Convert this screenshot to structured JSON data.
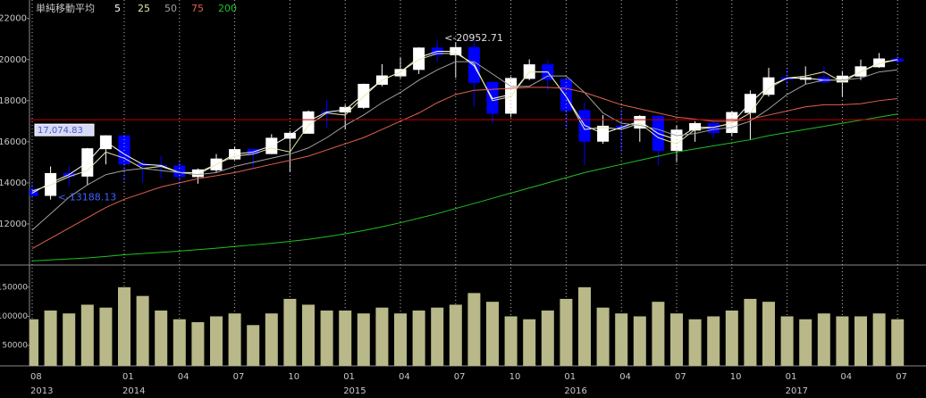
{
  "chart_data": [
    {
      "type": "candlestick",
      "legend_title": "単純移動平均",
      "categories": [
        "08",
        null,
        null,
        null,
        null,
        "01",
        null,
        null,
        "04",
        null,
        null,
        "07",
        null,
        null,
        "10",
        null,
        null,
        "01",
        null,
        null,
        "04",
        null,
        null,
        "07",
        null,
        null,
        "10",
        null,
        null,
        "01",
        null,
        null,
        "04",
        null,
        null,
        "07",
        null,
        null,
        "10",
        null,
        null,
        "01",
        null,
        null,
        "04",
        null,
        null,
        "07"
      ],
      "years": [
        "2013",
        null,
        null,
        null,
        null,
        "2014",
        null,
        null,
        null,
        null,
        null,
        null,
        null,
        null,
        null,
        null,
        null,
        "2015",
        null,
        null,
        null,
        null,
        null,
        null,
        null,
        null,
        null,
        null,
        null,
        "2016",
        null,
        null,
        null,
        null,
        null,
        null,
        null,
        null,
        null,
        null,
        null,
        "2017",
        null,
        null,
        null,
        null,
        null,
        null
      ],
      "open": [
        13668,
        13388,
        14455,
        14327,
        15661,
        16291,
        14914,
        14841,
        14827,
        14304,
        14632,
        15162,
        15620,
        15424,
        16173,
        16413,
        17459,
        17450,
        17674,
        18797,
        19206,
        19520,
        20563,
        20235,
        20585,
        18890,
        17388,
        19083,
        19747,
        19033,
        17518,
        16026,
        16758,
        16666,
        17234,
        15575,
        16569,
        16887,
        16449,
        17425,
        18308,
        19114,
        19041,
        19118,
        18909,
        19196,
        19650,
        20033
      ],
      "high": [
        14000,
        14800,
        14800,
        15700,
        16320,
        16300,
        15100,
        15300,
        15100,
        14700,
        15400,
        15760,
        15700,
        16370,
        16530,
        17520,
        18030,
        17800,
        18830,
        19780,
        20130,
        20600,
        20952.71,
        20850,
        20950,
        18900,
        19180,
        20010,
        20000,
        19100,
        17900,
        17300,
        17600,
        17300,
        17300,
        16800,
        17000,
        17100,
        17500,
        18500,
        19600,
        19600,
        19670,
        19670,
        19450,
        20000,
        20320,
        20230
      ],
      "low": [
        13200,
        13188.13,
        13850,
        13900,
        14900,
        14000,
        13995,
        14200,
        13880,
        13960,
        14500,
        15100,
        14750,
        15400,
        14529,
        16400,
        16670,
        16590,
        17600,
        18700,
        19100,
        19300,
        19900,
        19120,
        17710,
        16900,
        17200,
        19000,
        18500,
        16600,
        14860,
        15900,
        15500,
        16000,
        14860,
        15000,
        16000,
        16200,
        16300,
        16100,
        18200,
        18650,
        18800,
        18850,
        18200,
        19000,
        19600,
        19800
      ],
      "close": [
        13388,
        14455,
        14327,
        15661,
        16291,
        14914,
        14841,
        14827,
        14304,
        14632,
        15162,
        15620,
        15424,
        16173,
        16413,
        17459,
        17450,
        17674,
        18797,
        19206,
        19520,
        20563,
        20235,
        20585,
        18890,
        17388,
        19083,
        19747,
        19033,
        17518,
        16026,
        16758,
        16666,
        17234,
        15575,
        16569,
        16887,
        16449,
        17425,
        18308,
        19114,
        19041,
        19118,
        18909,
        19196,
        19650,
        20033,
        19925
      ],
      "up_color": "#ffffff",
      "down_color": "#0000ff",
      "ylim": [
        10000,
        22900
      ],
      "yticks": [
        12000,
        14000,
        16000,
        18000,
        20000,
        22000
      ],
      "x_grid": true,
      "series": [
        {
          "name": "5",
          "color": "#ffffff",
          "values": [
            13500,
            14000,
            14400,
            15000,
            16000,
            15400,
            14900,
            14850,
            14500,
            14500,
            14900,
            15400,
            15500,
            15800,
            16300,
            17000,
            17450,
            17550,
            18300,
            19000,
            19400,
            20100,
            20400,
            20400,
            19700,
            18100,
            18300,
            19400,
            19400,
            18200,
            16800,
            16400,
            16700,
            17000,
            16400,
            16100,
            16700,
            16700,
            16900,
            17900,
            18700,
            19100,
            19100,
            19000,
            19000,
            19400,
            19850,
            20000
          ]
        },
        {
          "name": "25",
          "color": "#e8e8a8",
          "values": [
            13600,
            13900,
            14300,
            14600,
            15500,
            15200,
            14700,
            14800,
            14500,
            14400,
            14900,
            15300,
            15400,
            15700,
            15500,
            16800,
            17400,
            17300,
            18200,
            19000,
            19400,
            20000,
            20300,
            20300,
            19800,
            18000,
            18200,
            19400,
            19400,
            18200,
            16600,
            16700,
            16600,
            16900,
            16200,
            15900,
            16600,
            16700,
            16900,
            17400,
            18600,
            19100,
            19200,
            19400,
            18900,
            19400,
            19800,
            20000
          ]
        },
        {
          "name": "50",
          "color": "#a0a0a0",
          "values": [
            11700,
            12500,
            13300,
            13900,
            14400,
            14600,
            14700,
            14600,
            14500,
            14400,
            14500,
            14800,
            15000,
            15200,
            15400,
            15700,
            16200,
            16800,
            17300,
            17900,
            18400,
            19000,
            19500,
            19900,
            19900,
            19300,
            18700,
            18700,
            19200,
            19200,
            18400,
            17400,
            16900,
            16800,
            16600,
            16300,
            16400,
            16600,
            16700,
            17000,
            17600,
            18300,
            18800,
            19000,
            19000,
            19100,
            19400,
            19500
          ]
        },
        {
          "name": "75",
          "color": "#e06050",
          "values": [
            10800,
            11300,
            11800,
            12300,
            12800,
            13200,
            13500,
            13800,
            14000,
            14200,
            14350,
            14500,
            14700,
            14900,
            15100,
            15300,
            15600,
            15900,
            16200,
            16600,
            17000,
            17400,
            17900,
            18300,
            18500,
            18550,
            18600,
            18650,
            18650,
            18600,
            18400,
            18100,
            17800,
            17600,
            17400,
            17200,
            17100,
            17000,
            17000,
            17100,
            17300,
            17500,
            17700,
            17800,
            17800,
            17850,
            18000,
            18100
          ]
        },
        {
          "name": "200",
          "color": "#20c020",
          "values": [
            10200,
            10250,
            10300,
            10350,
            10420,
            10500,
            10560,
            10620,
            10680,
            10750,
            10820,
            10900,
            10980,
            11060,
            11150,
            11250,
            11380,
            11520,
            11680,
            11860,
            12060,
            12280,
            12500,
            12750,
            13000,
            13250,
            13500,
            13750,
            14000,
            14250,
            14500,
            14700,
            14900,
            15100,
            15300,
            15500,
            15650,
            15800,
            15950,
            16100,
            16300,
            16450,
            16600,
            16750,
            16900,
            17050,
            17200,
            17350
          ]
        }
      ],
      "hline": {
        "value": 17074.83,
        "label": "17,074.83",
        "color": "#c00000"
      },
      "annotations": [
        {
          "label": "<-20952.71",
          "value": 20952.71,
          "index": 22
        },
        {
          "label": "<-13188.13",
          "value": 13188.13,
          "index": 1
        }
      ]
    },
    {
      "type": "bar",
      "color": "#b8b888",
      "values": [
        95000,
        110000,
        105000,
        120000,
        115000,
        150000,
        135000,
        110000,
        95000,
        90000,
        100000,
        105000,
        85000,
        105000,
        130000,
        120000,
        110000,
        110000,
        105000,
        115000,
        105000,
        110000,
        115000,
        120000,
        140000,
        125000,
        100000,
        95000,
        110000,
        130000,
        150000,
        115000,
        105000,
        100000,
        125000,
        105000,
        95000,
        100000,
        110000,
        130000,
        125000,
        100000,
        95000,
        105000,
        100000,
        100000,
        105000,
        95000
      ],
      "ylim": [
        15000,
        185000
      ],
      "yticks": [
        150000,
        100000,
        50000
      ]
    }
  ]
}
